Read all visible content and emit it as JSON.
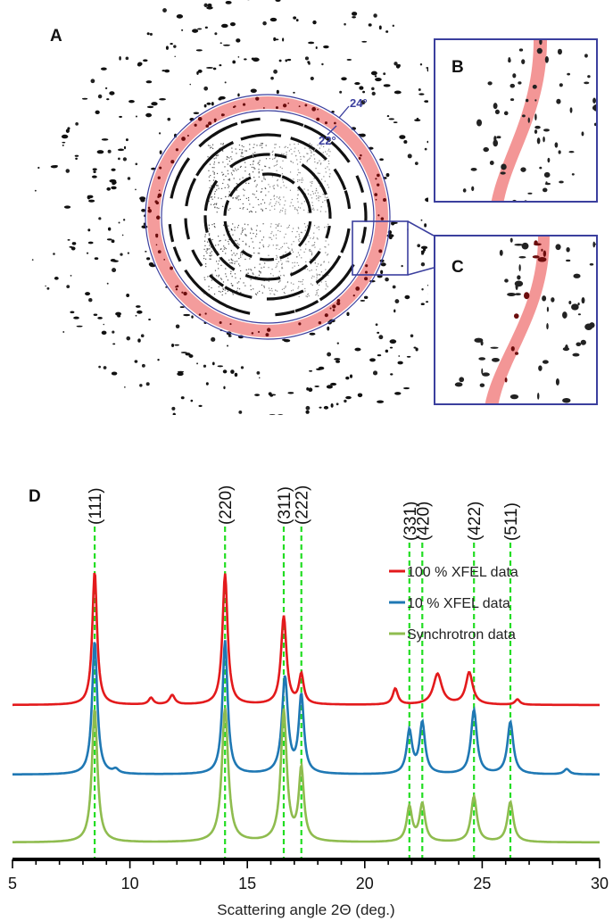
{
  "panels": {
    "a": "A",
    "b": "B",
    "c": "C",
    "d": "D"
  },
  "ring_annotations": {
    "outer": "24°",
    "inner": "22°"
  },
  "colors": {
    "frame": "#3b3f9e",
    "ring_highlight": "#f28b8b",
    "xfel_100": "#e31a1c",
    "xfel_10": "#1f78b4",
    "synchrotron": "#8fbc4f",
    "reflection_marker": "#22dd22"
  },
  "chart_data": {
    "type": "line",
    "xlabel": "Scattering angle 2Θ (deg.)",
    "xlim": [
      5,
      30
    ],
    "xticks": [
      "5",
      "10",
      "15",
      "20",
      "25",
      "30"
    ],
    "grid": false,
    "legend_position": "top-right",
    "reflections": [
      {
        "label": "(111)",
        "x": 8.5
      },
      {
        "label": "(220)",
        "x": 14.05
      },
      {
        "label": "(311)",
        "x": 16.55
      },
      {
        "label": "(222)",
        "x": 17.3
      },
      {
        "label": "(331)",
        "x": 21.9
      },
      {
        "label": "(420)",
        "x": 22.45
      },
      {
        "label": "(422)",
        "x": 24.65
      },
      {
        "label": "(511)",
        "x": 26.2
      }
    ],
    "series": [
      {
        "name": "100 %  XFEL data",
        "color": "#e31a1c",
        "baseline": 0,
        "peaks": [
          {
            "x": 8.5,
            "h": 1.0,
            "w": 0.12
          },
          {
            "x": 10.9,
            "h": 0.05,
            "w": 0.12
          },
          {
            "x": 11.8,
            "h": 0.07,
            "w": 0.14
          },
          {
            "x": 14.05,
            "h": 0.98,
            "w": 0.13
          },
          {
            "x": 16.55,
            "h": 0.66,
            "w": 0.14
          },
          {
            "x": 17.3,
            "h": 0.22,
            "w": 0.12
          },
          {
            "x": 21.3,
            "h": 0.12,
            "w": 0.13
          },
          {
            "x": 23.1,
            "h": 0.23,
            "w": 0.22
          },
          {
            "x": 24.45,
            "h": 0.24,
            "w": 0.18
          },
          {
            "x": 26.5,
            "h": 0.04,
            "w": 0.12
          }
        ]
      },
      {
        "name": "10 %  XFEL data",
        "color": "#1f78b4",
        "baseline": 0,
        "peaks": [
          {
            "x": 8.5,
            "h": 1.0,
            "w": 0.13
          },
          {
            "x": 9.4,
            "h": 0.03,
            "w": 0.14
          },
          {
            "x": 14.05,
            "h": 1.0,
            "w": 0.13
          },
          {
            "x": 16.6,
            "h": 0.72,
            "w": 0.15
          },
          {
            "x": 17.3,
            "h": 0.58,
            "w": 0.13
          },
          {
            "x": 21.9,
            "h": 0.32,
            "w": 0.14
          },
          {
            "x": 22.45,
            "h": 0.38,
            "w": 0.14
          },
          {
            "x": 24.65,
            "h": 0.48,
            "w": 0.15
          },
          {
            "x": 26.2,
            "h": 0.39,
            "w": 0.15
          },
          {
            "x": 28.6,
            "h": 0.04,
            "w": 0.14
          }
        ]
      },
      {
        "name": "Synchrotron data",
        "color": "#8fbc4f",
        "baseline": 0,
        "peaks": [
          {
            "x": 8.5,
            "h": 1.0,
            "w": 0.14
          },
          {
            "x": 14.05,
            "h": 1.0,
            "w": 0.16
          },
          {
            "x": 16.55,
            "h": 0.98,
            "w": 0.15
          },
          {
            "x": 17.3,
            "h": 0.54,
            "w": 0.13
          },
          {
            "x": 21.9,
            "h": 0.26,
            "w": 0.14
          },
          {
            "x": 22.45,
            "h": 0.28,
            "w": 0.14
          },
          {
            "x": 24.65,
            "h": 0.34,
            "w": 0.15
          },
          {
            "x": 26.2,
            "h": 0.3,
            "w": 0.15
          }
        ]
      }
    ]
  }
}
